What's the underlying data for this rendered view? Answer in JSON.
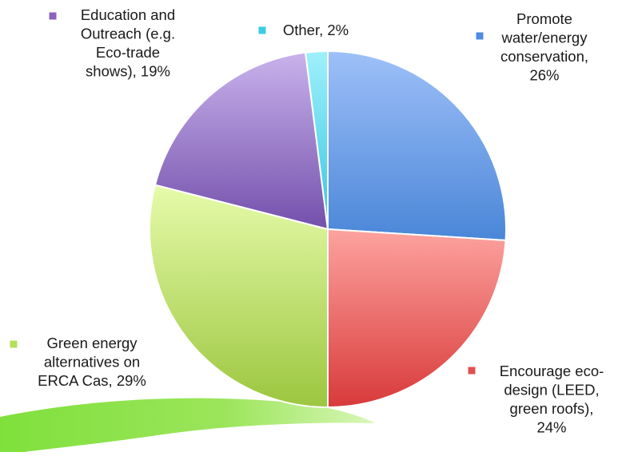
{
  "chart_data": {
    "type": "pie",
    "title": "",
    "start_angle_deg": 0,
    "direction": "clockwise",
    "legend": "none",
    "slices": [
      {
        "name": "Promote water/energy conservation",
        "value": 26,
        "label": "Promote water/energy conservation, 26%",
        "label_lines": [
          "Promote",
          "water/energy",
          "conservation,",
          "26%"
        ],
        "color_top": "#9ec0f8",
        "color_bottom": "#4a86d8",
        "marker_color": "#4f8be0"
      },
      {
        "name": "Encourage eco-design (LEED, green roofs)",
        "value": 24,
        "label": "Encourage eco-design (LEED, green roofs), 24%",
        "label_lines": [
          "Encourage eco-",
          "design (LEED,",
          "green roofs),",
          "24%"
        ],
        "color_top": "#fda39f",
        "color_bottom": "#d83a3a",
        "marker_color": "#e05050"
      },
      {
        "name": "Green energy alternatives on ERCA Cas",
        "value": 29,
        "label": "Green energy alternatives on ERCA Cas, 29%",
        "label_lines": [
          "Green energy",
          "alternatives on",
          "ERCA Cas, 29%"
        ],
        "color_top": "#e6fbaa",
        "color_bottom": "#9cc63f",
        "marker_color": "#b4df5a"
      },
      {
        "name": "Education and Outreach (e.g. Eco-trade shows)",
        "value": 19,
        "label": "Education and Outreach (e.g. Eco-trade shows), 19%",
        "label_lines": [
          "Education and",
          "Outreach (e.g.",
          "Eco-trade",
          "shows), 19%"
        ],
        "color_top": "#c9b2ec",
        "color_bottom": "#7350ab",
        "marker_color": "#8a64c0"
      },
      {
        "name": "Other",
        "value": 2,
        "label": "Other, 2%",
        "label_lines": [
          "Other, 2%"
        ],
        "color_top": "#9ff0fb",
        "color_bottom": "#38c6e2",
        "marker_color": "#3ecbe6"
      }
    ]
  }
}
